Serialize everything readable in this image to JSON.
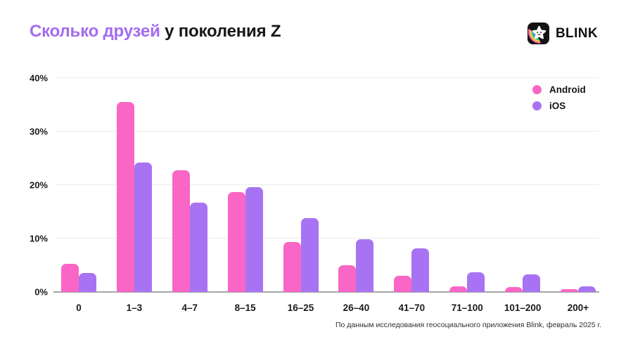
{
  "header": {
    "title_highlight": "Сколько друзей",
    "title_rest": " у поколения Z",
    "brand": "BLINK"
  },
  "footer": {
    "source": "По данным исследования геосоциального приложения Blink, февраль 2025 г."
  },
  "colors": {
    "android": "#F966C5",
    "ios": "#A873F3",
    "title_highlight": "#A26CF0",
    "gridline": "#ECECEC",
    "axis": "#A6A6A6",
    "text": "#171717"
  },
  "chart_data": {
    "type": "bar",
    "title": "Сколько друзей у поколения Z",
    "categories": [
      "0",
      "1–3",
      "4–7",
      "8–15",
      "16–25",
      "26–40",
      "41–70",
      "71–100",
      "101–200",
      "200+"
    ],
    "series": [
      {
        "name": "Android",
        "color": "#F966C5",
        "values": [
          5.3,
          35.5,
          22.7,
          18.7,
          9.4,
          5.0,
          3.0,
          1.1,
          0.9,
          0.5
        ]
      },
      {
        "name": "iOS",
        "color": "#A873F3",
        "values": [
          3.5,
          24.2,
          16.7,
          19.6,
          13.8,
          9.9,
          8.1,
          3.7,
          3.3,
          1.0
        ]
      }
    ],
    "xlabel": "",
    "ylabel": "",
    "ylim": [
      0,
      40
    ],
    "yticks": [
      {
        "label": "0%",
        "value": 0
      },
      {
        "label": "10%",
        "value": 10
      },
      {
        "label": "20%",
        "value": 20
      },
      {
        "label": "30%",
        "value": 30
      },
      {
        "label": "40%",
        "value": 40
      }
    ],
    "grid": true,
    "legend_position": "top-right"
  }
}
